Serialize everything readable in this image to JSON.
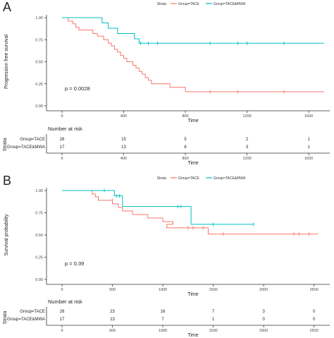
{
  "colors": {
    "tace": "#F8766D",
    "tace_mwa": "#00BFC4"
  },
  "chart_data": [
    {
      "type": "line",
      "panel_label": "A",
      "ylabel": "Progression free survival",
      "xlabel": "Time",
      "xlim": [
        0,
        1700
      ],
      "ylim": [
        0,
        1.0
      ],
      "x_ticks": [
        0,
        400,
        800,
        1200,
        1600
      ],
      "y_ticks": [
        "0.00",
        "0.25",
        "0.50",
        "0.75",
        "1.00"
      ],
      "legend_title": "Strata",
      "legend_position": "top",
      "p_value": "p = 0.0028",
      "series": [
        {
          "name": "Group=TACE",
          "color": "#F8766D",
          "steps": [
            [
              0,
              1.0
            ],
            [
              40,
              0.96
            ],
            [
              70,
              0.93
            ],
            [
              90,
              0.89
            ],
            [
              110,
              0.86
            ],
            [
              200,
              0.82
            ],
            [
              230,
              0.79
            ],
            [
              270,
              0.75
            ],
            [
              300,
              0.71
            ],
            [
              320,
              0.68
            ],
            [
              340,
              0.64
            ],
            [
              360,
              0.61
            ],
            [
              380,
              0.57
            ],
            [
              400,
              0.54
            ],
            [
              420,
              0.5
            ],
            [
              460,
              0.46
            ],
            [
              480,
              0.43
            ],
            [
              500,
              0.39
            ],
            [
              520,
              0.36
            ],
            [
              540,
              0.32
            ],
            [
              560,
              0.29
            ],
            [
              580,
              0.25
            ],
            [
              700,
              0.21
            ],
            [
              800,
              0.16
            ],
            [
              1700,
              0.16
            ]
          ],
          "censored": [
            [
              960,
              0.16
            ],
            [
              1140,
              0.16
            ],
            [
              1440,
              0.16
            ]
          ]
        },
        {
          "name": "Group=TACE&MWA",
          "color": "#00BFC4",
          "steps": [
            [
              0,
              1.0
            ],
            [
              260,
              0.94
            ],
            [
              300,
              0.88
            ],
            [
              360,
              0.82
            ],
            [
              470,
              0.76
            ],
            [
              500,
              0.71
            ],
            [
              1700,
              0.71
            ]
          ],
          "censored": [
            [
              510,
              0.71
            ],
            [
              560,
              0.71
            ],
            [
              620,
              0.71
            ],
            [
              960,
              0.71
            ],
            [
              1140,
              0.71
            ],
            [
              1200,
              0.71
            ],
            [
              1440,
              0.71
            ]
          ]
        }
      ],
      "risk_table": {
        "title": "Number at risk",
        "strata_label": "Strata",
        "x": [
          0,
          400,
          800,
          1200,
          1600
        ],
        "rows": [
          {
            "name": "Group=TACE",
            "values": [
              "28",
              "15",
              "5",
              "2",
              "1"
            ]
          },
          {
            "name": "Group=TACE&MWA",
            "values": [
              "17",
              "13",
              "6",
              "3",
              "1"
            ]
          }
        ]
      }
    },
    {
      "type": "line",
      "panel_label": "B",
      "ylabel": "Survival probability",
      "xlabel": "Time",
      "xlim": [
        0,
        2600
      ],
      "ylim": [
        0,
        1.0
      ],
      "x_ticks": [
        0,
        500,
        1000,
        1500,
        2000,
        2500
      ],
      "y_ticks": [
        "0.00",
        "0.25",
        "0.50",
        "0.75",
        "1.00"
      ],
      "legend_title": "Strata",
      "legend_position": "top",
      "p_value": "p = 0.39",
      "series": [
        {
          "name": "Group=TACE",
          "color": "#F8766D",
          "steps": [
            [
              0,
              1.0
            ],
            [
              300,
              0.96
            ],
            [
              330,
              0.93
            ],
            [
              360,
              0.89
            ],
            [
              500,
              0.85
            ],
            [
              560,
              0.81
            ],
            [
              600,
              0.77
            ],
            [
              700,
              0.73
            ],
            [
              850,
              0.69
            ],
            [
              1000,
              0.65
            ],
            [
              1100,
              0.62
            ],
            [
              1040,
              0.58
            ],
            [
              1450,
              0.51
            ],
            [
              2540,
              0.51
            ]
          ],
          "censored": [
            [
              500,
              0.89
            ],
            [
              1250,
              0.58
            ],
            [
              1300,
              0.58
            ],
            [
              1400,
              0.58
            ],
            [
              1600,
              0.51
            ],
            [
              2300,
              0.51
            ],
            [
              2350,
              0.51
            ],
            [
              2450,
              0.51
            ]
          ]
        },
        {
          "name": "Group=TACE&MWA",
          "color": "#00BFC4",
          "steps": [
            [
              0,
              1.0
            ],
            [
              520,
              0.94
            ],
            [
              600,
              0.82
            ],
            [
              1280,
              0.62
            ],
            [
              1900,
              0.62
            ]
          ],
          "censored": [
            [
              420,
              1.0
            ],
            [
              540,
              0.94
            ],
            [
              570,
              0.94
            ],
            [
              1150,
              0.82
            ],
            [
              1180,
              0.82
            ],
            [
              1500,
              0.62
            ],
            [
              1900,
              0.62
            ]
          ]
        }
      ],
      "risk_table": {
        "title": "Number at risk",
        "strata_label": "Strata",
        "x": [
          0,
          500,
          1000,
          1500,
          2000,
          2500
        ],
        "rows": [
          {
            "name": "Group=TACE",
            "values": [
              "28",
              "23",
              "16",
              "7",
              "3",
              "0"
            ]
          },
          {
            "name": "Group=TACE&MWA",
            "values": [
              "17",
              "13",
              "7",
              "1",
              "0",
              "0"
            ]
          }
        ]
      }
    }
  ]
}
